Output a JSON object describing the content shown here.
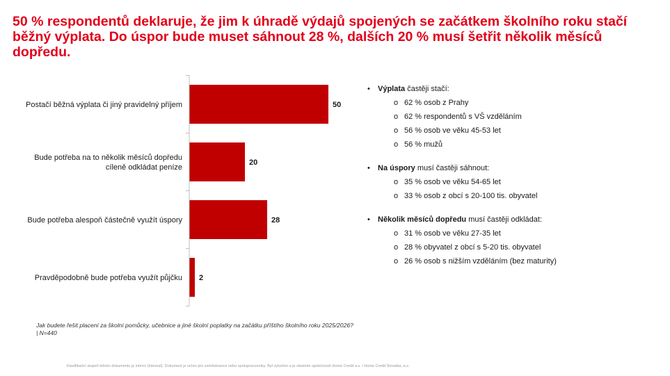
{
  "slide": {
    "title": "50 % respondentů deklaruje, že jim k úhradě výdajů spojených se začátkem školního roku stačí běžný výplata. Do úspor bude muset sáhnout 28 %, dalších 20 % musí šetřit několik měsíců dopředu.",
    "question": "Jak budete řešit placení za školní pomůcky, učebnice a jiné školní poplatky na začátku příštího školního roku 2025/2026?  | N=440",
    "footer": "Klasifikační stupeň tohoto dokumentu je interní (Internal). Dokument je určen pro zaměstnance nebo spolupracovníky. Byl vytvořen a je vlastněn společností Home Credit a.s. / Home Credit Slovakia, a.s."
  },
  "chart_data": {
    "type": "bar",
    "orientation": "horizontal",
    "categories": [
      [
        "Postačí běžná výplata či jiný pravidelný příjem"
      ],
      [
        "Bude potřeba na to několik měsíců dopředu",
        "cíleně odkládat peníze"
      ],
      [
        "Bude potřeba alespoň částečně využít úspory"
      ],
      [
        "Pravděpodobně bude potřeba využít půjčku"
      ]
    ],
    "values": [
      50,
      20,
      28,
      2
    ],
    "data_labels": [
      "50",
      "20",
      "28",
      "2"
    ],
    "xlim": [
      0,
      50
    ],
    "bar_color": "#c00000",
    "grid": false,
    "legend": "none"
  },
  "notes": [
    {
      "bold": "Výplata",
      "rest": " častěji stačí:",
      "items": [
        "62 % osob z Prahy",
        "62 % respondentů s VŠ vzděláním",
        "56 % osob ve věku 45-53 let",
        "56 % mužů"
      ]
    },
    {
      "bold": "Na úspory",
      "rest": " musí častěji sáhnout:",
      "items": [
        "35 % osob ve věku 54-65 let",
        "33 % osob z obcí s 20-100 tis. obyvatel"
      ]
    },
    {
      "bold": "Několik měsíců dopředu",
      "rest": " musí častěji odkládat:",
      "items": [
        "31 % osob ve věku 27-35 let",
        "28 % obyvatel z obcí s 5-20 tis. obyvatel",
        "26 % osob s nižším vzděláním (bez maturity)"
      ]
    }
  ]
}
